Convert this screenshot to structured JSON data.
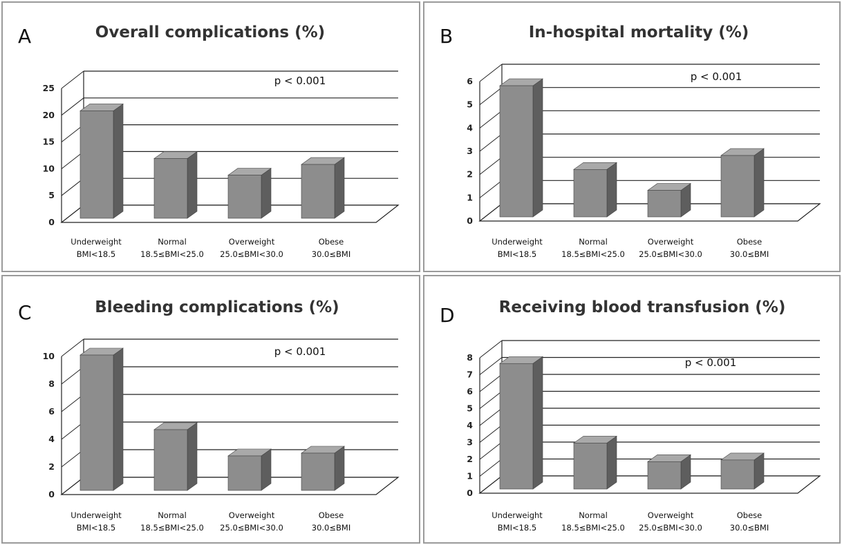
{
  "chart_data": [
    {
      "type": "bar",
      "panel_label": "A",
      "title": "Overall complications (%)",
      "annotation": "p < 0.001",
      "categories": [
        {
          "line1": "Underweight",
          "line2": "BMI<18.5"
        },
        {
          "line1": "Normal",
          "line2": "18.5≤BMI<25.0"
        },
        {
          "line1": "Overweight",
          "line2": "25.0≤BMI<30.0"
        },
        {
          "line1": "Obese",
          "line2": "30.0≤BMI"
        }
      ],
      "values": [
        20.3,
        11.4,
        8.3,
        10.3
      ],
      "yticks": [
        "0",
        "5",
        "10",
        "15",
        "20",
        "25"
      ],
      "ylim": [
        0,
        25
      ],
      "grid": true
    },
    {
      "type": "bar",
      "panel_label": "B",
      "title": "In-hospital mortality (%)",
      "annotation": "p < 0.001",
      "categories": [
        {
          "line1": "Underweight",
          "line2": "BMI<18.5"
        },
        {
          "line1": "Normal",
          "line2": "18.5≤BMI<25.0"
        },
        {
          "line1": "Overweight",
          "line2": "25.0≤BMI<30.0"
        },
        {
          "line1": "Obese",
          "line2": "30.0≤BMI"
        }
      ],
      "values": [
        5.7,
        2.1,
        1.2,
        2.7
      ],
      "yticks": [
        "0",
        "1",
        "2",
        "3",
        "4",
        "5",
        "6"
      ],
      "ylim": [
        0,
        6
      ],
      "grid": true
    },
    {
      "type": "bar",
      "panel_label": "C",
      "title": "Bleeding complications (%)",
      "annotation": "p < 0.001",
      "categories": [
        {
          "line1": "Underweight",
          "line2": "BMI<18.5"
        },
        {
          "line1": "Normal",
          "line2": "18.5≤BMI<25.0"
        },
        {
          "line1": "Overweight",
          "line2": "25.0≤BMI<30.0"
        },
        {
          "line1": "Obese",
          "line2": "30.0≤BMI"
        }
      ],
      "values": [
        9.9,
        4.5,
        2.6,
        2.8
      ],
      "yticks": [
        "0",
        "2",
        "4",
        "6",
        "8",
        "10"
      ],
      "ylim": [
        0,
        10
      ],
      "grid": true
    },
    {
      "type": "bar",
      "panel_label": "D",
      "title": "Receiving blood transfusion (%)",
      "annotation": "p < 0.001",
      "categories": [
        {
          "line1": "Underweight",
          "line2": "BMI<18.5"
        },
        {
          "line1": "Normal",
          "line2": "18.5≤BMI<25.0"
        },
        {
          "line1": "Overweight",
          "line2": "25.0≤BMI<30.0"
        },
        {
          "line1": "Obese",
          "line2": "30.0≤BMI"
        }
      ],
      "values": [
        7.5,
        2.8,
        1.7,
        1.8
      ],
      "yticks": [
        "0",
        "1",
        "2",
        "3",
        "4",
        "5",
        "6",
        "7",
        "8"
      ],
      "ylim": [
        0,
        8
      ],
      "grid": true
    }
  ],
  "colors": {
    "bar_front": "#8d8d8d",
    "bar_side": "#5e5e5e",
    "bar_top": "#a9a9a9",
    "gridline": "#222222",
    "panel_border": "#9a9a9a"
  }
}
